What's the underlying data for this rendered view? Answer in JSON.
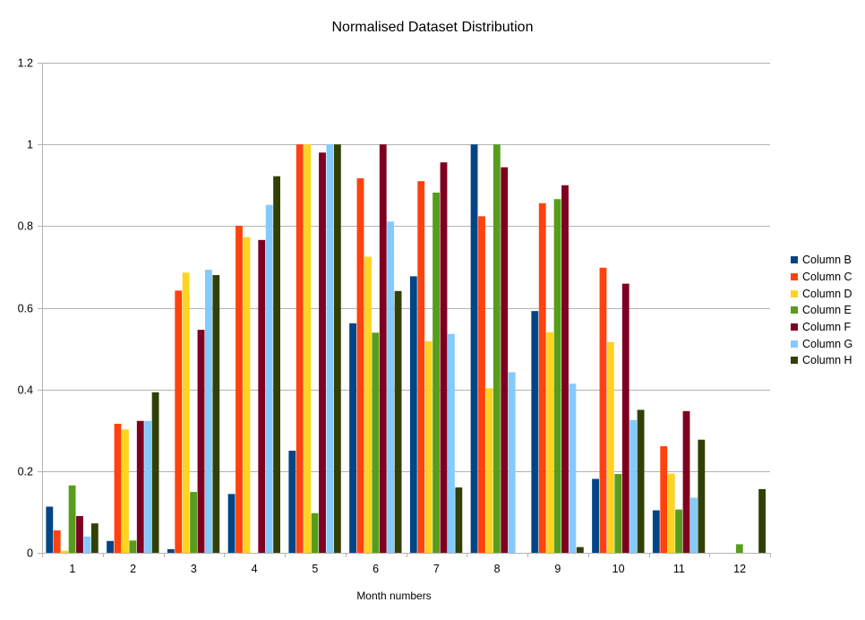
{
  "chart_data": {
    "type": "bar",
    "title": "Normalised Dataset Distribution",
    "xlabel": "Month numbers",
    "ylabel": "",
    "ylim": [
      0,
      1.2
    ],
    "yticks": [
      "0",
      "0.2",
      "0.4",
      "0.6",
      "0.8",
      "1",
      "1.2"
    ],
    "grid": true,
    "legend_position": "right",
    "categories": [
      "1",
      "2",
      "3",
      "4",
      "5",
      "6",
      "7",
      "8",
      "9",
      "10",
      "11",
      "12"
    ],
    "series": [
      {
        "name": "Column B",
        "color": "#004586",
        "values": [
          0.113,
          0.029,
          0.009,
          0.144,
          0.25,
          0.562,
          0.677,
          1.0,
          0.592,
          0.181,
          0.104,
          0
        ]
      },
      {
        "name": "Column C",
        "color": "#ff420e",
        "values": [
          0.055,
          0.316,
          0.642,
          0.801,
          1.0,
          0.917,
          0.91,
          0.824,
          0.856,
          0.698,
          0.261,
          0
        ]
      },
      {
        "name": "Column D",
        "color": "#ffd320",
        "values": [
          0.005,
          0.302,
          0.686,
          0.773,
          1.0,
          0.725,
          0.518,
          0.403,
          0.54,
          0.516,
          0.194,
          0
        ]
      },
      {
        "name": "Column E",
        "color": "#579d1c",
        "values": [
          0.165,
          0.03,
          0.149,
          0,
          0.097,
          0.539,
          0.882,
          1.0,
          0.866,
          0.193,
          0.106,
          0.021
        ]
      },
      {
        "name": "Column F",
        "color": "#7e0021",
        "values": [
          0.09,
          0.323,
          0.546,
          0.766,
          0.98,
          1.0,
          0.956,
          0.944,
          0.9,
          0.659,
          0.347,
          0
        ]
      },
      {
        "name": "Column G",
        "color": "#83caff",
        "values": [
          0.04,
          0.323,
          0.693,
          0.852,
          1.0,
          0.811,
          0.536,
          0.442,
          0.414,
          0.325,
          0.135,
          0
        ]
      },
      {
        "name": "Column H",
        "color": "#314004",
        "values": [
          0.072,
          0.393,
          0.68,
          0.922,
          1.0,
          0.641,
          0.16,
          0,
          0.014,
          0.35,
          0.277,
          0.156
        ]
      }
    ]
  }
}
